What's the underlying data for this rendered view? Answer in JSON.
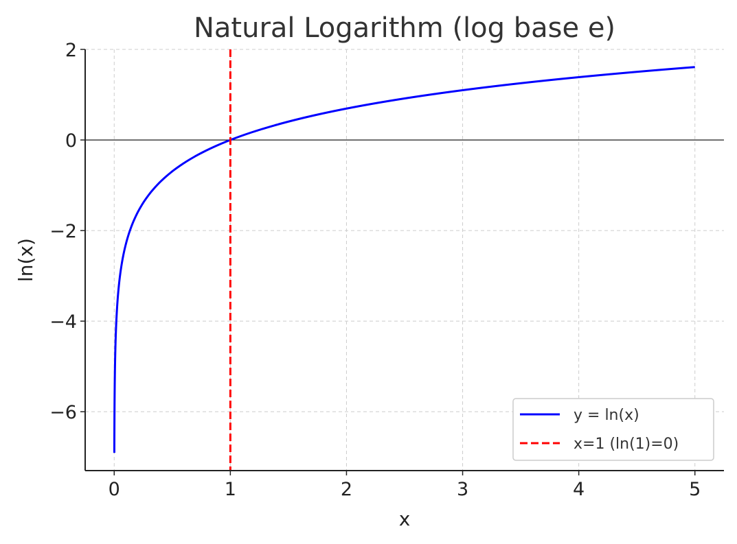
{
  "chart_data": {
    "type": "line",
    "title": "Natural Logarithm (log base e)",
    "xlabel": "x",
    "ylabel": "ln(x)",
    "xlim": [
      -0.25,
      5.25
    ],
    "ylim": [
      -7.3,
      2.0
    ],
    "xticks": [
      0,
      1,
      2,
      3,
      4,
      5
    ],
    "yticks": [
      2,
      0,
      -2,
      -4,
      -6
    ],
    "xtick_labels": [
      "0",
      "1",
      "2",
      "3",
      "4",
      "5"
    ],
    "ytick_labels": [
      "2",
      "0",
      "−2",
      "−4",
      "−6"
    ],
    "grid": true,
    "legend_position": "lower-right",
    "series": [
      {
        "name": "y = ln(x)",
        "function": "ln(x)",
        "x_range": [
          0.001,
          5
        ],
        "color": "#0000ff",
        "style": "solid"
      },
      {
        "name": "x=1 (ln(1)=0)",
        "x_value": 1,
        "color": "#ff0000",
        "style": "dashed"
      }
    ],
    "reference_lines": [
      {
        "y": 0,
        "color": "#000000"
      }
    ]
  }
}
